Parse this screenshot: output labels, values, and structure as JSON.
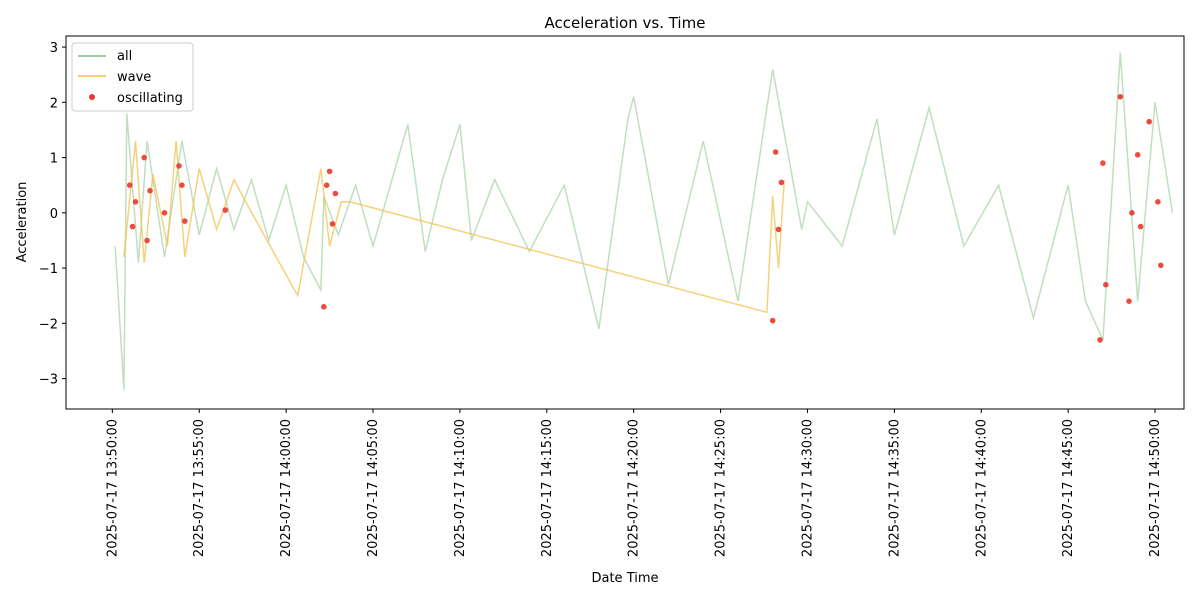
{
  "chart_data": {
    "type": "line",
    "title": "Acceleration vs. Time",
    "xlabel": "Date Time",
    "ylabel": "Acceleration",
    "ylim": [
      -3.55,
      3.2
    ],
    "xlim": [
      "2025-07-17 13:47:20",
      "2025-07-17 14:51:40"
    ],
    "x_ticks": [
      "2025-07-17 13:50:00",
      "2025-07-17 13:55:00",
      "2025-07-17 14:00:00",
      "2025-07-17 14:05:00",
      "2025-07-17 14:10:00",
      "2025-07-17 14:15:00",
      "2025-07-17 14:20:00",
      "2025-07-17 14:25:00",
      "2025-07-17 14:30:00",
      "2025-07-17 14:35:00",
      "2025-07-17 14:40:00",
      "2025-07-17 14:45:00",
      "2025-07-17 14:50:00"
    ],
    "y_ticks": [
      -3,
      -2,
      -1,
      0,
      1,
      2,
      3
    ],
    "grid": false,
    "legend_position": "top-left",
    "colors": {
      "all": "#7fbf7f",
      "wave": "#f2c14e",
      "oscillating": "#e8382a"
    },
    "series": [
      {
        "name": "all",
        "style": "line",
        "x": [
          "2025-07-17 13:50:10",
          "2025-07-17 13:50:40",
          "2025-07-17 13:50:50",
          "2025-07-17 13:51:30",
          "2025-07-17 13:52:00",
          "2025-07-17 13:53:00",
          "2025-07-17 13:54:00",
          "2025-07-17 13:55:00",
          "2025-07-17 13:56:00",
          "2025-07-17 13:57:00",
          "2025-07-17 13:58:00",
          "2025-07-17 13:59:00",
          "2025-07-17 14:00:00",
          "2025-07-17 14:01:00",
          "2025-07-17 14:02:00",
          "2025-07-17 14:02:10",
          "2025-07-17 14:03:00",
          "2025-07-17 14:04:00",
          "2025-07-17 14:05:00",
          "2025-07-17 14:06:00",
          "2025-07-17 14:07:00",
          "2025-07-17 14:08:00",
          "2025-07-17 14:09:00",
          "2025-07-17 14:10:00",
          "2025-07-17 14:10:40",
          "2025-07-17 14:12:00",
          "2025-07-17 14:14:00",
          "2025-07-17 14:16:00",
          "2025-07-17 14:18:00",
          "2025-07-17 14:19:40",
          "2025-07-17 14:20:00",
          "2025-07-17 14:22:00",
          "2025-07-17 14:24:00",
          "2025-07-17 14:26:00",
          "2025-07-17 14:28:00",
          "2025-07-17 14:29:40",
          "2025-07-17 14:30:00",
          "2025-07-17 14:32:00",
          "2025-07-17 14:34:00",
          "2025-07-17 14:35:00",
          "2025-07-17 14:37:00",
          "2025-07-17 14:39:00",
          "2025-07-17 14:41:00",
          "2025-07-17 14:43:00",
          "2025-07-17 14:45:00",
          "2025-07-17 14:46:00",
          "2025-07-17 14:47:00",
          "2025-07-17 14:48:00",
          "2025-07-17 14:49:00",
          "2025-07-17 14:50:00",
          "2025-07-17 14:51:00"
        ],
        "y": [
          -0.6,
          -3.2,
          1.8,
          -0.9,
          1.3,
          -0.8,
          1.3,
          -0.4,
          0.8,
          -0.3,
          0.6,
          -0.5,
          0.5,
          -0.8,
          -1.4,
          0.3,
          -0.4,
          0.5,
          -0.6,
          0.5,
          1.6,
          -0.7,
          0.6,
          1.6,
          -0.5,
          0.6,
          -0.7,
          0.5,
          -2.1,
          1.7,
          2.1,
          -1.3,
          1.3,
          -1.6,
          2.6,
          -0.3,
          0.2,
          -0.6,
          1.7,
          -0.4,
          1.9,
          -0.6,
          0.5,
          -1.9,
          0.5,
          -1.6,
          -2.3,
          2.9,
          -1.6,
          2.0,
          0.0
        ]
      },
      {
        "name": "wave",
        "style": "line",
        "x": [
          "2025-07-17 13:50:40",
          "2025-07-17 13:51:20",
          "2025-07-17 13:51:50",
          "2025-07-17 13:52:20",
          "2025-07-17 13:53:10",
          "2025-07-17 13:53:40",
          "2025-07-17 13:54:10",
          "2025-07-17 13:55:00",
          "2025-07-17 13:56:00",
          "2025-07-17 13:57:00",
          "2025-07-17 13:57:40",
          "2025-07-17 14:00:40",
          "2025-07-17 14:02:00",
          "2025-07-17 14:02:30",
          "2025-07-17 14:03:10",
          "2025-07-17 14:03:40",
          "2025-07-17 14:27:40",
          "2025-07-17 14:28:00",
          "2025-07-17 14:28:20",
          "2025-07-17 14:28:40"
        ],
        "y": [
          -0.8,
          1.3,
          -0.9,
          0.7,
          -0.6,
          1.3,
          -0.8,
          0.8,
          -0.3,
          0.6,
          0.2,
          -1.5,
          0.8,
          -0.6,
          0.2,
          0.2,
          -1.8,
          0.3,
          -1.0,
          0.6
        ]
      },
      {
        "name": "oscillating",
        "style": "scatter",
        "x": [
          "2025-07-17 13:51:00",
          "2025-07-17 13:51:10",
          "2025-07-17 13:51:20",
          "2025-07-17 13:51:50",
          "2025-07-17 13:52:00",
          "2025-07-17 13:52:10",
          "2025-07-17 13:53:00",
          "2025-07-17 13:53:50",
          "2025-07-17 13:54:00",
          "2025-07-17 13:54:10",
          "2025-07-17 13:56:30",
          "2025-07-17 14:02:10",
          "2025-07-17 14:02:20",
          "2025-07-17 14:02:30",
          "2025-07-17 14:02:40",
          "2025-07-17 14:02:50",
          "2025-07-17 14:28:00",
          "2025-07-17 14:28:10",
          "2025-07-17 14:28:20",
          "2025-07-17 14:28:30",
          "2025-07-17 14:46:50",
          "2025-07-17 14:47:00",
          "2025-07-17 14:47:10",
          "2025-07-17 14:48:00",
          "2025-07-17 14:48:30",
          "2025-07-17 14:48:40",
          "2025-07-17 14:49:00",
          "2025-07-17 14:49:10",
          "2025-07-17 14:49:40",
          "2025-07-17 14:50:10",
          "2025-07-17 14:50:20"
        ],
        "y": [
          0.5,
          -0.25,
          0.2,
          1.0,
          -0.5,
          0.4,
          0.0,
          0.85,
          0.5,
          -0.15,
          0.05,
          -1.7,
          0.5,
          0.75,
          -0.2,
          0.35,
          -1.95,
          1.1,
          -0.3,
          0.55,
          -2.3,
          0.9,
          -1.3,
          2.1,
          -1.6,
          0.0,
          1.05,
          -0.25,
          1.65,
          0.2,
          -0.95
        ]
      }
    ]
  }
}
